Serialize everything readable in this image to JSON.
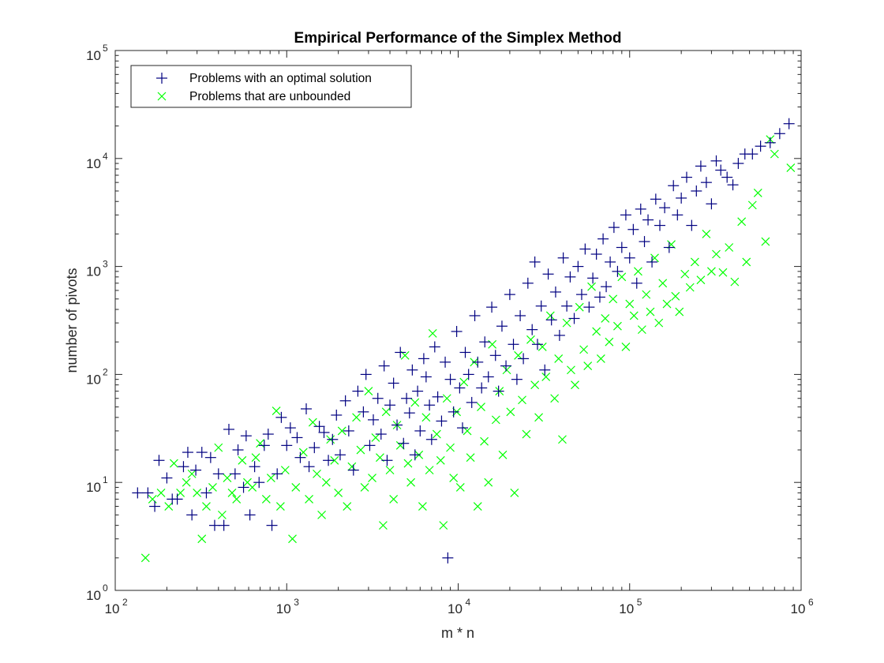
{
  "chart_data": {
    "type": "scatter",
    "title": "Empirical Performance of the Simplex Method",
    "xlabel": "m * n",
    "ylabel": "number of pivots",
    "xscale": "log",
    "yscale": "log",
    "xlim": [
      100,
      1000000
    ],
    "ylim": [
      1,
      100000
    ],
    "x_ticks": [
      {
        "base": "10",
        "exp": "2",
        "value": 100
      },
      {
        "base": "10",
        "exp": "3",
        "value": 1000
      },
      {
        "base": "10",
        "exp": "4",
        "value": 10000
      },
      {
        "base": "10",
        "exp": "5",
        "value": 100000
      },
      {
        "base": "10",
        "exp": "6",
        "value": 1000000
      }
    ],
    "y_ticks": [
      {
        "base": "10",
        "exp": "0",
        "value": 1
      },
      {
        "base": "10",
        "exp": "1",
        "value": 10
      },
      {
        "base": "10",
        "exp": "2",
        "value": 100
      },
      {
        "base": "10",
        "exp": "3",
        "value": 1000
      },
      {
        "base": "10",
        "exp": "4",
        "value": 10000
      },
      {
        "base": "10",
        "exp": "5",
        "value": 100000
      }
    ],
    "grid": false,
    "legend_position": "top-left",
    "series": [
      {
        "name": "Problems with an optimal solution",
        "marker": "+",
        "color": "#000080",
        "points": [
          [
            135,
            8
          ],
          [
            155,
            8
          ],
          [
            170,
            6
          ],
          [
            180,
            16
          ],
          [
            200,
            11
          ],
          [
            215,
            7
          ],
          [
            230,
            7
          ],
          [
            250,
            14
          ],
          [
            265,
            19
          ],
          [
            280,
            5
          ],
          [
            295,
            13
          ],
          [
            320,
            19
          ],
          [
            340,
            8
          ],
          [
            360,
            17
          ],
          [
            380,
            4
          ],
          [
            400,
            12
          ],
          [
            430,
            4
          ],
          [
            460,
            31
          ],
          [
            500,
            12
          ],
          [
            520,
            20
          ],
          [
            560,
            9
          ],
          [
            580,
            27
          ],
          [
            610,
            5
          ],
          [
            650,
            14
          ],
          [
            690,
            10
          ],
          [
            740,
            22
          ],
          [
            780,
            28
          ],
          [
            820,
            4
          ],
          [
            880,
            12
          ],
          [
            930,
            40
          ],
          [
            1000,
            22
          ],
          [
            1050,
            32
          ],
          [
            1150,
            26
          ],
          [
            1200,
            17
          ],
          [
            1300,
            48
          ],
          [
            1350,
            14
          ],
          [
            1450,
            21
          ],
          [
            1550,
            33
          ],
          [
            1650,
            29
          ],
          [
            1750,
            16
          ],
          [
            1850,
            25
          ],
          [
            1950,
            42
          ],
          [
            2050,
            18
          ],
          [
            2200,
            57
          ],
          [
            2300,
            30
          ],
          [
            2450,
            13
          ],
          [
            2600,
            70
          ],
          [
            2800,
            45
          ],
          [
            2900,
            100
          ],
          [
            3050,
            22
          ],
          [
            3200,
            38
          ],
          [
            3400,
            60
          ],
          [
            3550,
            28
          ],
          [
            3700,
            120
          ],
          [
            3850,
            16
          ],
          [
            4000,
            52
          ],
          [
            4200,
            83
          ],
          [
            4400,
            34
          ],
          [
            4600,
            160
          ],
          [
            4800,
            23
          ],
          [
            5000,
            60
          ],
          [
            5200,
            44
          ],
          [
            5400,
            110
          ],
          [
            5600,
            18
          ],
          [
            5800,
            70
          ],
          [
            6000,
            30
          ],
          [
            6300,
            140
          ],
          [
            6500,
            95
          ],
          [
            6800,
            52
          ],
          [
            7000,
            25
          ],
          [
            7300,
            180
          ],
          [
            7600,
            62
          ],
          [
            8000,
            37
          ],
          [
            8400,
            130
          ],
          [
            8700,
            2
          ],
          [
            9000,
            90
          ],
          [
            9400,
            45
          ],
          [
            9800,
            250
          ],
          [
            10200,
            75
          ],
          [
            10600,
            32
          ],
          [
            11000,
            160
          ],
          [
            11500,
            100
          ],
          [
            12000,
            55
          ],
          [
            12500,
            350
          ],
          [
            13000,
            130
          ],
          [
            13700,
            75
          ],
          [
            14300,
            200
          ],
          [
            15000,
            95
          ],
          [
            15700,
            420
          ],
          [
            16500,
            150
          ],
          [
            17200,
            70
          ],
          [
            18000,
            280
          ],
          [
            19000,
            120
          ],
          [
            20000,
            550
          ],
          [
            21000,
            190
          ],
          [
            22000,
            90
          ],
          [
            23000,
            350
          ],
          [
            24000,
            140
          ],
          [
            25500,
            700
          ],
          [
            27000,
            260
          ],
          [
            28000,
            1100
          ],
          [
            29000,
            190
          ],
          [
            30500,
            430
          ],
          [
            32000,
            110
          ],
          [
            33500,
            850
          ],
          [
            35000,
            320
          ],
          [
            37000,
            580
          ],
          [
            39000,
            230
          ],
          [
            41000,
            1200
          ],
          [
            43000,
            430
          ],
          [
            45000,
            800
          ],
          [
            47500,
            330
          ],
          [
            50000,
            1000
          ],
          [
            52500,
            550
          ],
          [
            55000,
            1450
          ],
          [
            58000,
            420
          ],
          [
            61000,
            780
          ],
          [
            64000,
            1300
          ],
          [
            67000,
            520
          ],
          [
            70000,
            1800
          ],
          [
            73000,
            650
          ],
          [
            77000,
            1100
          ],
          [
            81000,
            2300
          ],
          [
            85000,
            900
          ],
          [
            90000,
            1500
          ],
          [
            95000,
            3000
          ],
          [
            100000,
            1200
          ],
          [
            105000,
            2200
          ],
          [
            110000,
            700
          ],
          [
            116000,
            3400
          ],
          [
            122000,
            1700
          ],
          [
            128000,
            2700
          ],
          [
            135000,
            1100
          ],
          [
            142000,
            4200
          ],
          [
            150000,
            2400
          ],
          [
            160000,
            3500
          ],
          [
            170000,
            1500
          ],
          [
            180000,
            5600
          ],
          [
            190000,
            3000
          ],
          [
            200000,
            4300
          ],
          [
            215000,
            6700
          ],
          [
            230000,
            2400
          ],
          [
            245000,
            5000
          ],
          [
            260000,
            8500
          ],
          [
            280000,
            6000
          ],
          [
            300000,
            3800
          ],
          [
            320000,
            9500
          ],
          [
            340000,
            7800
          ],
          [
            370000,
            6700
          ],
          [
            400000,
            5700
          ],
          [
            430000,
            9000
          ],
          [
            470000,
            11000
          ],
          [
            520000,
            11000
          ],
          [
            580000,
            13000
          ],
          [
            660000,
            14000
          ],
          [
            750000,
            17000
          ],
          [
            850000,
            21000
          ]
        ]
      },
      {
        "name": "Problems that are unbounded",
        "marker": "x",
        "color": "#00ff00",
        "points": [
          [
            150,
            2
          ],
          [
            165,
            7
          ],
          [
            185,
            8
          ],
          [
            205,
            6
          ],
          [
            220,
            15
          ],
          [
            240,
            8
          ],
          [
            260,
            10
          ],
          [
            280,
            12
          ],
          [
            300,
            8
          ],
          [
            320,
            3
          ],
          [
            340,
            6
          ],
          [
            370,
            9
          ],
          [
            400,
            21
          ],
          [
            420,
            5
          ],
          [
            450,
            11
          ],
          [
            480,
            8
          ],
          [
            510,
            7
          ],
          [
            550,
            16
          ],
          [
            590,
            10
          ],
          [
            630,
            9
          ],
          [
            660,
            17
          ],
          [
            700,
            23
          ],
          [
            760,
            7
          ],
          [
            810,
            11
          ],
          [
            870,
            46
          ],
          [
            920,
            6
          ],
          [
            980,
            13
          ],
          [
            1080,
            3
          ],
          [
            1130,
            9
          ],
          [
            1250,
            19
          ],
          [
            1350,
            7
          ],
          [
            1420,
            36
          ],
          [
            1500,
            12
          ],
          [
            1600,
            5
          ],
          [
            1700,
            10
          ],
          [
            1800,
            25
          ],
          [
            1900,
            16
          ],
          [
            2000,
            8
          ],
          [
            2100,
            30
          ],
          [
            2250,
            6
          ],
          [
            2400,
            14
          ],
          [
            2550,
            40
          ],
          [
            2700,
            20
          ],
          [
            2850,
            9
          ],
          [
            3000,
            70
          ],
          [
            3150,
            11
          ],
          [
            3300,
            26
          ],
          [
            3500,
            17
          ],
          [
            3650,
            4
          ],
          [
            3800,
            45
          ],
          [
            4000,
            13
          ],
          [
            4200,
            7
          ],
          [
            4400,
            34
          ],
          [
            4600,
            22
          ],
          [
            4900,
            150
          ],
          [
            5100,
            15
          ],
          [
            5300,
            10
          ],
          [
            5600,
            55
          ],
          [
            5900,
            18
          ],
          [
            6200,
            6
          ],
          [
            6500,
            40
          ],
          [
            6800,
            13
          ],
          [
            7100,
            240
          ],
          [
            7500,
            28
          ],
          [
            7900,
            16
          ],
          [
            8200,
            4
          ],
          [
            8600,
            60
          ],
          [
            9000,
            21
          ],
          [
            9400,
            11
          ],
          [
            9800,
            45
          ],
          [
            10300,
            9
          ],
          [
            10800,
            85
          ],
          [
            11300,
            30
          ],
          [
            11800,
            17
          ],
          [
            12400,
            130
          ],
          [
            13000,
            6
          ],
          [
            13600,
            50
          ],
          [
            14200,
            24
          ],
          [
            15000,
            10
          ],
          [
            15800,
            190
          ],
          [
            16600,
            38
          ],
          [
            17400,
            70
          ],
          [
            18200,
            18
          ],
          [
            19200,
            110
          ],
          [
            20200,
            45
          ],
          [
            21300,
            8
          ],
          [
            22400,
            150
          ],
          [
            23600,
            58
          ],
          [
            25000,
            28
          ],
          [
            26500,
            210
          ],
          [
            28000,
            80
          ],
          [
            29500,
            40
          ],
          [
            31000,
            180
          ],
          [
            32500,
            95
          ],
          [
            34500,
            350
          ],
          [
            36500,
            60
          ],
          [
            38500,
            140
          ],
          [
            40500,
            25
          ],
          [
            43000,
            300
          ],
          [
            45500,
            110
          ],
          [
            48000,
            80
          ],
          [
            51000,
            420
          ],
          [
            54000,
            170
          ],
          [
            57000,
            120
          ],
          [
            60000,
            650
          ],
          [
            64000,
            250
          ],
          [
            68000,
            140
          ],
          [
            72000,
            330
          ],
          [
            76000,
            200
          ],
          [
            80000,
            500
          ],
          [
            85000,
            280
          ],
          [
            90000,
            800
          ],
          [
            95000,
            180
          ],
          [
            100000,
            450
          ],
          [
            106000,
            350
          ],
          [
            112000,
            900
          ],
          [
            118000,
            260
          ],
          [
            125000,
            550
          ],
          [
            132000,
            380
          ],
          [
            140000,
            1200
          ],
          [
            148000,
            300
          ],
          [
            156000,
            700
          ],
          [
            165000,
            450
          ],
          [
            175000,
            1600
          ],
          [
            185000,
            530
          ],
          [
            195000,
            380
          ],
          [
            210000,
            850
          ],
          [
            225000,
            640
          ],
          [
            240000,
            1100
          ],
          [
            260000,
            750
          ],
          [
            280000,
            2000
          ],
          [
            300000,
            900
          ],
          [
            320000,
            1300
          ],
          [
            350000,
            880
          ],
          [
            380000,
            1500
          ],
          [
            410000,
            720
          ],
          [
            450000,
            2600
          ],
          [
            480000,
            1100
          ],
          [
            520000,
            3700
          ],
          [
            560000,
            4800
          ],
          [
            620000,
            1700
          ],
          [
            660000,
            15000
          ],
          [
            700000,
            11000
          ],
          [
            870000,
            8200
          ]
        ]
      }
    ]
  }
}
